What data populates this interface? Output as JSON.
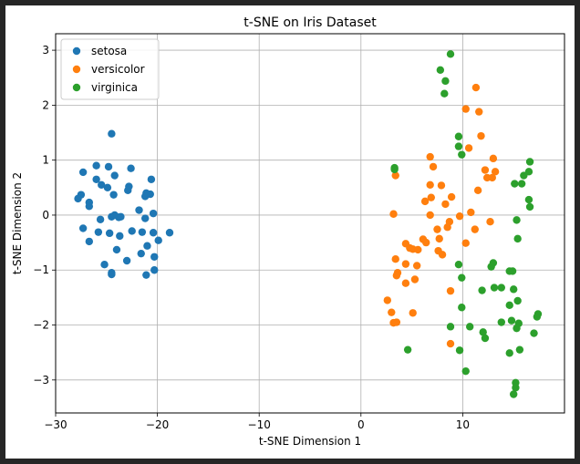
{
  "chart_data": {
    "type": "scatter",
    "title": "t-SNE on Iris Dataset",
    "xlabel": "t-SNE Dimension 1",
    "ylabel": "t-SNE Dimension 2",
    "xlim": [
      -30,
      20
    ],
    "ylim": [
      -3.6,
      3.3
    ],
    "xticks": [
      -30,
      -20,
      -10,
      0,
      10
    ],
    "yticks": [
      -3,
      -2,
      -1,
      0,
      1,
      2,
      3
    ],
    "grid": true,
    "legend_position": "top-left",
    "series": [
      {
        "name": "setosa",
        "color": "#1f77b4",
        "points": [
          [
            -24.5,
            1.48
          ],
          [
            -26.0,
            0.9
          ],
          [
            -24.8,
            0.88
          ],
          [
            -22.6,
            0.85
          ],
          [
            -27.3,
            0.78
          ],
          [
            -24.2,
            0.72
          ],
          [
            -25.5,
            0.55
          ],
          [
            -22.8,
            0.52
          ],
          [
            -26.0,
            0.65
          ],
          [
            -20.6,
            0.65
          ],
          [
            -24.9,
            0.5
          ],
          [
            -22.9,
            0.45
          ],
          [
            -24.3,
            0.37
          ],
          [
            -21.1,
            0.4
          ],
          [
            -20.7,
            0.38
          ],
          [
            -21.2,
            0.34
          ],
          [
            -27.5,
            0.37
          ],
          [
            -27.8,
            0.3
          ],
          [
            -26.7,
            0.23
          ],
          [
            -26.7,
            0.16
          ],
          [
            -21.8,
            0.09
          ],
          [
            -20.4,
            0.03
          ],
          [
            -24.5,
            -0.03
          ],
          [
            -23.8,
            -0.04
          ],
          [
            -24.2,
            0.0
          ],
          [
            -23.6,
            -0.03
          ],
          [
            -25.6,
            -0.08
          ],
          [
            -21.2,
            -0.06
          ],
          [
            -27.3,
            -0.24
          ],
          [
            -22.5,
            -0.29
          ],
          [
            -21.5,
            -0.31
          ],
          [
            -18.8,
            -0.32
          ],
          [
            -20.4,
            -0.32
          ],
          [
            -24.7,
            -0.33
          ],
          [
            -25.8,
            -0.31
          ],
          [
            -23.7,
            -0.38
          ],
          [
            -19.9,
            -0.46
          ],
          [
            -26.7,
            -0.48
          ],
          [
            -21.0,
            -0.56
          ],
          [
            -21.6,
            -0.7
          ],
          [
            -24.0,
            -0.63
          ],
          [
            -20.3,
            -0.76
          ],
          [
            -23.0,
            -0.83
          ],
          [
            -25.2,
            -0.9
          ],
          [
            -20.3,
            -1.0
          ],
          [
            -24.5,
            -1.05
          ],
          [
            -24.5,
            -1.08
          ],
          [
            -21.1,
            -1.09
          ]
        ]
      },
      {
        "name": "versicolor",
        "color": "#ff7f0e",
        "points": [
          [
            11.3,
            2.32
          ],
          [
            10.3,
            1.93
          ],
          [
            11.6,
            1.88
          ],
          [
            11.8,
            1.44
          ],
          [
            10.6,
            1.22
          ],
          [
            6.8,
            1.06
          ],
          [
            13.0,
            1.03
          ],
          [
            7.1,
            0.88
          ],
          [
            12.2,
            0.82
          ],
          [
            13.2,
            0.79
          ],
          [
            3.4,
            0.72
          ],
          [
            12.4,
            0.68
          ],
          [
            12.9,
            0.68
          ],
          [
            7.9,
            0.54
          ],
          [
            6.8,
            0.55
          ],
          [
            11.5,
            0.45
          ],
          [
            6.9,
            0.32
          ],
          [
            8.9,
            0.33
          ],
          [
            6.3,
            0.25
          ],
          [
            8.3,
            0.2
          ],
          [
            3.2,
            0.02
          ],
          [
            6.8,
            0.0
          ],
          [
            9.7,
            -0.02
          ],
          [
            10.8,
            0.05
          ],
          [
            8.7,
            -0.12
          ],
          [
            12.7,
            -0.12
          ],
          [
            8.5,
            -0.22
          ],
          [
            7.5,
            -0.26
          ],
          [
            11.2,
            -0.26
          ],
          [
            6.1,
            -0.44
          ],
          [
            7.7,
            -0.43
          ],
          [
            4.4,
            -0.52
          ],
          [
            6.4,
            -0.5
          ],
          [
            10.3,
            -0.51
          ],
          [
            4.8,
            -0.6
          ],
          [
            5.1,
            -0.62
          ],
          [
            5.6,
            -0.63
          ],
          [
            7.6,
            -0.65
          ],
          [
            8.0,
            -0.72
          ],
          [
            3.4,
            -0.8
          ],
          [
            4.4,
            -0.89
          ],
          [
            5.5,
            -0.92
          ],
          [
            3.6,
            -1.05
          ],
          [
            3.5,
            -1.1
          ],
          [
            5.3,
            -1.17
          ],
          [
            4.4,
            -1.24
          ],
          [
            8.8,
            -1.38
          ],
          [
            2.6,
            -1.55
          ],
          [
            3.0,
            -1.77
          ],
          [
            5.1,
            -1.78
          ],
          [
            3.5,
            -1.95
          ],
          [
            3.2,
            -1.96
          ],
          [
            8.8,
            -2.34
          ]
        ]
      },
      {
        "name": "virginica",
        "color": "#2ca02c",
        "points": [
          [
            8.8,
            2.93
          ],
          [
            7.8,
            2.64
          ],
          [
            8.3,
            2.44
          ],
          [
            8.2,
            2.21
          ],
          [
            9.6,
            1.43
          ],
          [
            9.6,
            1.25
          ],
          [
            9.9,
            1.1
          ],
          [
            3.3,
            0.86
          ],
          [
            3.3,
            0.83
          ],
          [
            16.6,
            0.97
          ],
          [
            16.5,
            0.79
          ],
          [
            16.0,
            0.72
          ],
          [
            15.1,
            0.57
          ],
          [
            15.8,
            0.57
          ],
          [
            16.5,
            0.28
          ],
          [
            16.6,
            0.15
          ],
          [
            15.3,
            -0.09
          ],
          [
            15.4,
            -0.43
          ],
          [
            9.6,
            -0.9
          ],
          [
            13.0,
            -0.87
          ],
          [
            12.8,
            -0.94
          ],
          [
            14.6,
            -1.02
          ],
          [
            14.9,
            -1.02
          ],
          [
            9.9,
            -1.14
          ],
          [
            11.9,
            -1.37
          ],
          [
            13.1,
            -1.32
          ],
          [
            13.8,
            -1.32
          ],
          [
            15.0,
            -1.35
          ],
          [
            15.4,
            -1.56
          ],
          [
            14.6,
            -1.64
          ],
          [
            9.9,
            -1.68
          ],
          [
            17.4,
            -1.8
          ],
          [
            17.3,
            -1.85
          ],
          [
            13.8,
            -1.95
          ],
          [
            14.8,
            -1.92
          ],
          [
            15.5,
            -1.97
          ],
          [
            8.8,
            -2.03
          ],
          [
            10.7,
            -2.03
          ],
          [
            15.3,
            -2.06
          ],
          [
            12.0,
            -2.13
          ],
          [
            17.0,
            -2.15
          ],
          [
            12.2,
            -2.24
          ],
          [
            4.6,
            -2.45
          ],
          [
            9.7,
            -2.46
          ],
          [
            15.6,
            -2.45
          ],
          [
            14.6,
            -2.51
          ],
          [
            10.3,
            -2.84
          ],
          [
            15.2,
            -3.05
          ],
          [
            15.2,
            -3.14
          ],
          [
            15.0,
            -3.26
          ]
        ]
      }
    ]
  }
}
